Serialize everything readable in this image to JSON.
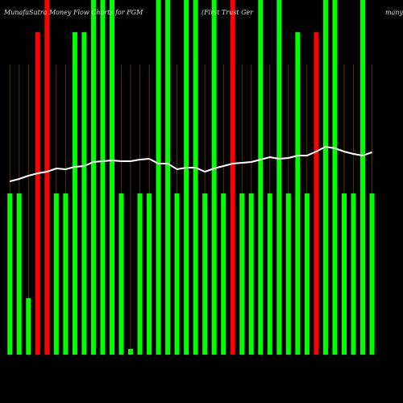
{
  "chart_data": {
    "type": "bar",
    "title": "MunafaSutra  Money Flow  Charts for FGM",
    "subtitle": "(First Trust Ger",
    "subtitle_end": "many",
    "categories": [
      null,
      null,
      null,
      null,
      null,
      null,
      null,
      null,
      null,
      null,
      null,
      null,
      null,
      null,
      null,
      null,
      null,
      null,
      null,
      null,
      null,
      null,
      null,
      null,
      null,
      null,
      null,
      null,
      null,
      null,
      null,
      null,
      null,
      null,
      null,
      null,
      null,
      null,
      null,
      null
    ],
    "ylim": [
      0,
      440
    ],
    "series": [
      {
        "name": null,
        "values": [
          200,
          200,
          70,
          400,
          460,
          200,
          200,
          400,
          400,
          460,
          460,
          460,
          200,
          7,
          200,
          200,
          460,
          460,
          200,
          460,
          460,
          200,
          460,
          200,
          460,
          200,
          200,
          460,
          200,
          460,
          200,
          400,
          200,
          400,
          460,
          460,
          200,
          200,
          460,
          200
        ],
        "colors": [
          "#00ff00",
          "#00ff00",
          "#00ff00",
          "#ff0000",
          "#ff0000",
          "#00ff00",
          "#00ff00",
          "#00ff00",
          "#00ff00",
          "#00ff00",
          "#00ff00",
          "#00ff00",
          "#00ff00",
          "#00ff00",
          "#00ff00",
          "#00ff00",
          "#00ff00",
          "#00ff00",
          "#00ff00",
          "#00ff00",
          "#00ff00",
          "#00ff00",
          "#00ff00",
          "#00ff00",
          "#ff0000",
          "#00ff00",
          "#00ff00",
          "#00ff00",
          "#00ff00",
          "#00ff00",
          "#00ff00",
          "#00ff00",
          "#00ff00",
          "#ff0000",
          "#00ff00",
          "#00ff00",
          "#00ff00",
          "#00ff00",
          "#00ff00",
          "#00ff00"
        ]
      },
      {
        "name": null,
        "type": "line",
        "color": "#ffffff",
        "values": [
          215,
          218,
          222,
          225,
          227,
          231,
          230,
          233,
          234,
          239,
          240,
          241,
          240,
          240,
          242,
          243,
          237,
          237,
          230,
          232,
          232,
          227,
          231,
          234,
          237,
          238,
          239,
          242,
          245,
          243,
          244,
          247,
          247,
          252,
          258,
          256,
          252,
          249,
          247,
          251
        ]
      }
    ],
    "gridline_color": "#6b3a00"
  }
}
